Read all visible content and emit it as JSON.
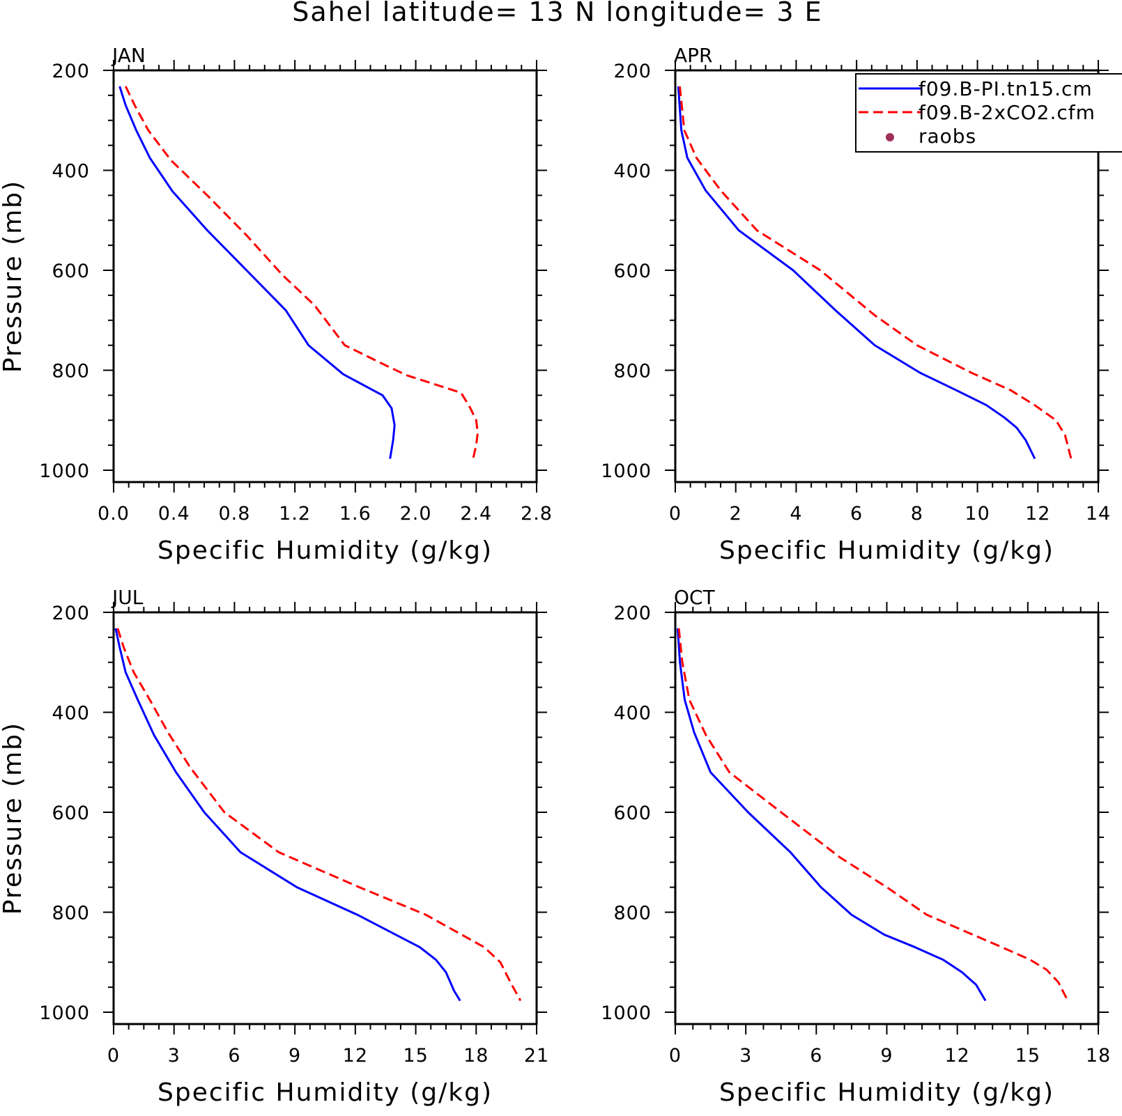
{
  "figure": {
    "title": "Sahel  latitude= 13 N longitude= 3 E"
  },
  "legend": {
    "entries": [
      {
        "label": "f09.B-PI.tn15.cm",
        "color": "#0000ff",
        "style": "solid"
      },
      {
        "label": "f09.B-2xCO2.cfm",
        "color": "#ff0000",
        "style": "dashed"
      },
      {
        "label": "raobs",
        "color": "#a0305a",
        "style": "marker"
      }
    ]
  },
  "chart_data": [
    {
      "type": "line",
      "panel": "JAN",
      "xlabel": "Specific Humidity (g/kg)",
      "ylabel": "Pressure (mb)",
      "xlim": [
        0,
        2.8
      ],
      "ylim": [
        1000,
        200
      ],
      "xticks": [
        "0.0",
        "0.4",
        "0.8",
        "1.2",
        "1.6",
        "2.0",
        "2.4",
        "2.8"
      ],
      "yticks": [
        "200",
        "400",
        "600",
        "800",
        "1000"
      ],
      "series": [
        {
          "name": "f09.B-PI.tn15.cm",
          "color": "#0000ff",
          "dash": false,
          "x": [
            0.04,
            0.08,
            0.15,
            0.24,
            0.39,
            0.62,
            0.88,
            1.14,
            1.29,
            1.52,
            1.78,
            1.84,
            1.86,
            1.85,
            1.83
          ],
          "y": [
            232,
            270,
            320,
            375,
            442,
            520,
            600,
            680,
            750,
            808,
            850,
            876,
            910,
            940,
            977
          ]
        },
        {
          "name": "f09.B-2xCO2.cfm",
          "color": "#ff0000",
          "dash": true,
          "x": [
            0.08,
            0.14,
            0.23,
            0.38,
            0.62,
            0.88,
            1.12,
            1.33,
            1.53,
            1.8,
            1.94,
            2.3,
            2.36,
            2.4,
            2.41,
            2.4,
            2.38
          ],
          "y": [
            232,
            270,
            320,
            380,
            450,
            530,
            610,
            670,
            750,
            790,
            810,
            845,
            875,
            900,
            925,
            950,
            977
          ]
        }
      ]
    },
    {
      "type": "line",
      "panel": "APR",
      "xlabel": "Specific Humidity (g/kg)",
      "ylabel": "",
      "xlim": [
        0,
        14
      ],
      "ylim": [
        1000,
        200
      ],
      "xticks": [
        "0",
        "2",
        "4",
        "6",
        "8",
        "10",
        "12",
        "14"
      ],
      "yticks": [
        "200",
        "400",
        "600",
        "800",
        "1000"
      ],
      "series": [
        {
          "name": "f09.B-PI.tn15.cm",
          "color": "#0000ff",
          "dash": false,
          "x": [
            0.1,
            0.2,
            0.4,
            1.0,
            2.1,
            3.9,
            5.3,
            6.6,
            8.1,
            9.3,
            10.3,
            10.9,
            11.3,
            11.6,
            11.9
          ],
          "y": [
            232,
            320,
            375,
            440,
            520,
            600,
            680,
            750,
            805,
            840,
            870,
            895,
            915,
            940,
            977
          ]
        },
        {
          "name": "f09.B-2xCO2.cfm",
          "color": "#ff0000",
          "dash": true,
          "x": [
            0.15,
            0.3,
            0.7,
            1.5,
            2.7,
            4.8,
            6.6,
            8.0,
            9.8,
            11.1,
            11.9,
            12.6,
            12.9,
            13.1
          ],
          "y": [
            232,
            320,
            375,
            440,
            520,
            600,
            690,
            750,
            805,
            840,
            870,
            900,
            930,
            977
          ]
        }
      ]
    },
    {
      "type": "line",
      "panel": "JUL",
      "xlabel": "Specific Humidity (g/kg)",
      "ylabel": "Pressure (mb)",
      "xlim": [
        0,
        21
      ],
      "ylim": [
        1000,
        200
      ],
      "xticks": [
        "0",
        "3",
        "6",
        "9",
        "12",
        "15",
        "18",
        "21"
      ],
      "yticks": [
        "200",
        "400",
        "600",
        "800",
        "1000"
      ],
      "series": [
        {
          "name": "f09.B-PI.tn15.cm",
          "color": "#0000ff",
          "dash": false,
          "x": [
            0.1,
            0.3,
            0.6,
            1.2,
            2.0,
            3.1,
            4.5,
            6.3,
            9.1,
            12.1,
            15.2,
            16.0,
            16.5,
            16.9,
            17.2
          ],
          "y": [
            232,
            270,
            320,
            375,
            445,
            520,
            600,
            680,
            750,
            805,
            870,
            895,
            920,
            957,
            977
          ]
        },
        {
          "name": "f09.B-2xCO2.cfm",
          "color": "#ff0000",
          "dash": true,
          "x": [
            0.2,
            0.5,
            1.0,
            1.8,
            2.7,
            3.8,
            5.5,
            8.2,
            12.2,
            15.5,
            18.4,
            19.2,
            19.7,
            20.2
          ],
          "y": [
            232,
            270,
            320,
            375,
            440,
            510,
            600,
            680,
            750,
            805,
            870,
            900,
            940,
            977
          ]
        }
      ]
    },
    {
      "type": "line",
      "panel": "OCT",
      "xlabel": "Specific Humidity (g/kg)",
      "ylabel": "",
      "xlim": [
        0,
        18
      ],
      "ylim": [
        1000,
        200
      ],
      "xticks": [
        "0",
        "3",
        "6",
        "9",
        "12",
        "15",
        "18"
      ],
      "yticks": [
        "200",
        "400",
        "600",
        "800",
        "1000"
      ],
      "series": [
        {
          "name": "f09.B-PI.tn15.cm",
          "color": "#0000ff",
          "dash": false,
          "x": [
            0.1,
            0.2,
            0.4,
            0.8,
            1.5,
            3.1,
            4.9,
            6.2,
            7.5,
            8.9,
            10.2,
            11.4,
            12.2,
            12.8,
            13.2
          ],
          "y": [
            232,
            300,
            375,
            440,
            520,
            600,
            680,
            750,
            805,
            845,
            870,
            895,
            920,
            945,
            977
          ]
        },
        {
          "name": "f09.B-2xCO2.cfm",
          "color": "#ff0000",
          "dash": true,
          "x": [
            0.15,
            0.3,
            0.6,
            1.3,
            2.3,
            4.5,
            7.0,
            9.0,
            10.7,
            13.9,
            15.1,
            15.8,
            16.3,
            16.7
          ],
          "y": [
            232,
            300,
            375,
            445,
            520,
            600,
            690,
            750,
            805,
            870,
            895,
            915,
            940,
            977
          ]
        }
      ]
    }
  ]
}
